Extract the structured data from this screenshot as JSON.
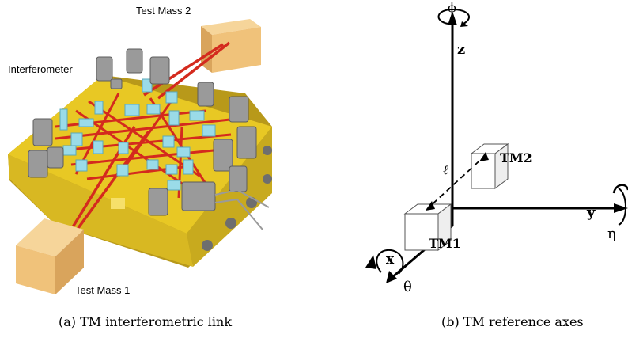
{
  "panel_a": {
    "labels": {
      "test_mass_2": "Test Mass 2",
      "interferometer": "Interferometer",
      "test_mass_1": "Test Mass 1"
    },
    "caption": "(a) TM interferometric link"
  },
  "panel_b": {
    "axes": {
      "z": "z",
      "y": "y",
      "x": "x"
    },
    "rotations": {
      "phi": "ϕ",
      "eta": "η",
      "theta": "θ"
    },
    "masses": {
      "tm1": "TM1",
      "tm2": "TM2"
    },
    "distance": "ℓ",
    "caption": "(b) TM reference axes"
  },
  "colors": {
    "bench": "#e8c824",
    "bench_dark": "#b8991a",
    "beam": "#d42a1e",
    "optic": "#9adbe8",
    "mount": "#9a9a9a",
    "test_mass": "#f0c27a"
  }
}
